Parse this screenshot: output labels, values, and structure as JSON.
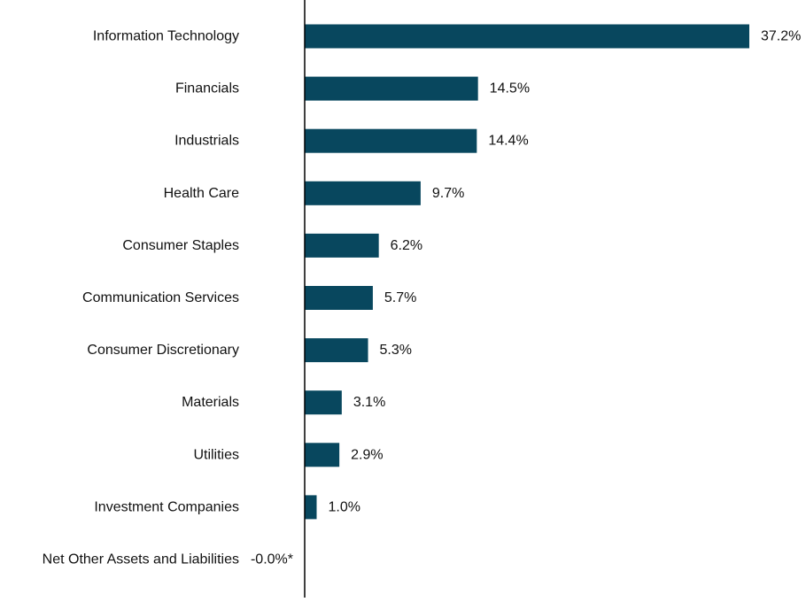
{
  "chart_data": {
    "type": "bar",
    "orientation": "horizontal",
    "title": "",
    "xlabel": "",
    "ylabel": "",
    "grid": false,
    "legend": "none",
    "bar_color": "#08475E",
    "xlim": [
      0,
      37.2
    ],
    "categories": [
      "Information Technology",
      "Financials",
      "Industrials",
      "Health Care",
      "Consumer Staples",
      "Communication Services",
      "Consumer Discretionary",
      "Materials",
      "Utilities",
      "Investment Companies",
      "Net Other Assets and Liabilities"
    ],
    "values": [
      37.2,
      14.5,
      14.4,
      9.7,
      6.2,
      5.7,
      5.3,
      3.1,
      2.9,
      1.0,
      -0.0
    ],
    "value_labels": [
      "37.2%",
      "14.5%",
      "14.4%",
      "9.7%",
      "6.2%",
      "5.7%",
      "5.3%",
      "3.1%",
      "2.9%",
      "1.0%",
      "-0.0%*"
    ]
  }
}
